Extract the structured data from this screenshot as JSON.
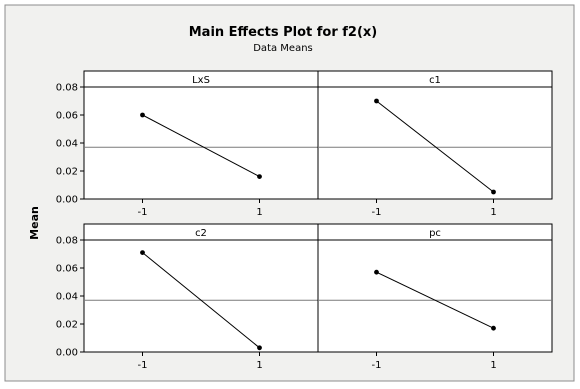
{
  "chart_data": {
    "type": "line",
    "title": "Main Effects Plot for f2(x)",
    "subtitle": "Data Means",
    "ylabel": "Mean",
    "categories": [
      "-1",
      "1"
    ],
    "ylim": [
      0.0,
      0.08
    ],
    "yticks": [
      "0.00",
      "0.02",
      "0.04",
      "0.06",
      "0.08"
    ],
    "reference_mean": 0.037,
    "grid": false,
    "panels": [
      {
        "name": "LxS",
        "values": [
          0.06,
          0.016
        ]
      },
      {
        "name": "c1",
        "values": [
          0.07,
          0.005
        ]
      },
      {
        "name": "c2",
        "values": [
          0.071,
          0.003
        ]
      },
      {
        "name": "pc",
        "values": [
          0.057,
          0.017
        ]
      }
    ]
  },
  "colors": {
    "outer_background": "#f1f1ef",
    "plot_background": "#ffffff",
    "line": "#000000",
    "reference_line": "#7a7a7a"
  }
}
